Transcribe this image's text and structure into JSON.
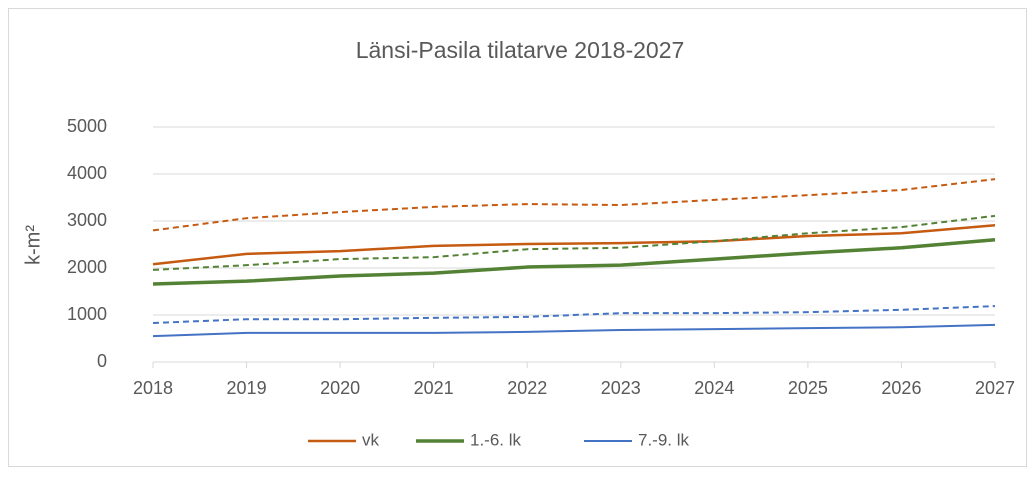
{
  "chart_data": {
    "type": "line",
    "title": "Länsi-Pasila tilatarve 2018-2027",
    "y_label": "k-m²",
    "x": [
      2018,
      2019,
      2020,
      2021,
      2022,
      2023,
      2024,
      2025,
      2026,
      2027
    ],
    "xlim": [
      2018,
      2027
    ],
    "xticks": [
      2018,
      2019,
      2020,
      2021,
      2022,
      2023,
      2024,
      2025,
      2026,
      2027
    ],
    "ylim": [
      0,
      5000
    ],
    "yticks": [
      0,
      1000,
      2000,
      3000,
      4000,
      5000
    ],
    "grid": true,
    "legend": "bottom",
    "series": [
      {
        "name": "vk",
        "color": "#c55a11",
        "width": 2.5,
        "dashed": false,
        "values": [
          2080,
          2300,
          2360,
          2470,
          2510,
          2530,
          2570,
          2680,
          2740,
          2910
        ]
      },
      {
        "color": "#c55a11",
        "width": 2,
        "dashed": true,
        "values": [
          2800,
          3060,
          3190,
          3300,
          3360,
          3340,
          3450,
          3550,
          3660,
          3890
        ]
      },
      {
        "name": "1.-6. lk",
        "color": "#548235",
        "width": 3.5,
        "dashed": false,
        "values": [
          1660,
          1720,
          1830,
          1890,
          2020,
          2060,
          2190,
          2320,
          2430,
          2600
        ]
      },
      {
        "color": "#548235",
        "width": 2,
        "dashed": true,
        "values": [
          1960,
          2060,
          2190,
          2230,
          2400,
          2430,
          2570,
          2740,
          2870,
          3110
        ]
      },
      {
        "name": "7.-9. lk",
        "color": "#4472c4",
        "width": 2,
        "dashed": false,
        "values": [
          550,
          620,
          620,
          620,
          640,
          680,
          700,
          720,
          740,
          790
        ]
      },
      {
        "color": "#4472c4",
        "width": 2,
        "dashed": true,
        "values": [
          830,
          910,
          910,
          940,
          960,
          1040,
          1040,
          1060,
          1110,
          1190
        ]
      }
    ]
  }
}
